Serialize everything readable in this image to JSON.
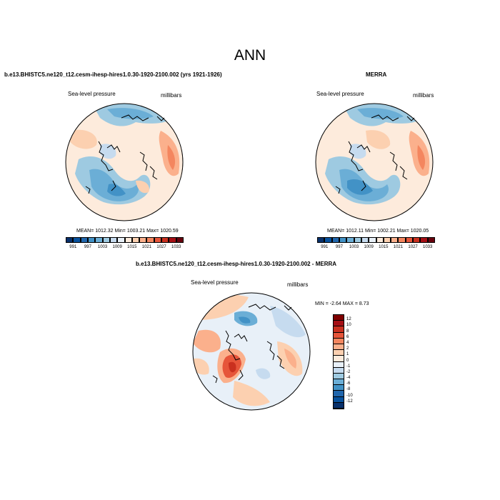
{
  "page": {
    "title": "ANN"
  },
  "panels": [
    {
      "id": "model",
      "title": "b.e13.BHISTC5.ne120_t12.cesm-ihesp-hires1.0.30-1920-2100.002 (yrs 1921-1926)",
      "variable": "Sea-level pressure",
      "units": "millibars",
      "stats": "MEAN= 1012.32  Min= 1003.21  Max= 1020.59",
      "colorbar": {
        "labels": [
          "991",
          "997",
          "1003",
          "1009",
          "1015",
          "1021",
          "1027",
          "1033"
        ],
        "colors": [
          "#08306b",
          "#08519c",
          "#2166ac",
          "#4292c6",
          "#6baed6",
          "#9ecae1",
          "#c6dbef",
          "#e8f0f8",
          "#fdebdc",
          "#fcd0b0",
          "#fbb08c",
          "#f4865f",
          "#e6553a",
          "#c9301f",
          "#a50f15",
          "#67000d"
        ]
      }
    },
    {
      "id": "obs",
      "title": "MERRA",
      "variable": "Sea-level pressure",
      "units": "millibars",
      "stats": "MEAN= 1012.11  Min= 1002.21  Max= 1020.05",
      "colorbar": {
        "labels": [
          "991",
          "997",
          "1003",
          "1009",
          "1015",
          "1021",
          "1027",
          "1033"
        ],
        "colors": [
          "#08306b",
          "#08519c",
          "#2166ac",
          "#4292c6",
          "#6baed6",
          "#9ecae1",
          "#c6dbef",
          "#e8f0f8",
          "#fdebdc",
          "#fcd0b0",
          "#fbb08c",
          "#f4865f",
          "#e6553a",
          "#c9301f",
          "#a50f15",
          "#67000d"
        ]
      }
    },
    {
      "id": "diff",
      "title": "b.e13.BHISTC5.ne120_t12.cesm-ihesp-hires1.0.30-1920-2100.002 - MERRA",
      "variable": "Sea-level pressure",
      "units": "millibars",
      "stats": "MIN =  -2.64 MAX =   8.73",
      "colorbar": {
        "labels": [
          "12",
          "10",
          "8",
          "6",
          "4",
          "2",
          "1",
          "0",
          "-1",
          "-2",
          "-4",
          "-6",
          "-8",
          "-10",
          "-12"
        ],
        "colors": [
          "#7f0000",
          "#a50f15",
          "#c9301f",
          "#e6553a",
          "#f4865f",
          "#fbb08c",
          "#fcd0b0",
          "#fdebdc",
          "#e8f0f8",
          "#c6dbef",
          "#9ecae1",
          "#6baed6",
          "#4292c6",
          "#2166ac",
          "#08519c",
          "#08306b"
        ]
      }
    }
  ]
}
